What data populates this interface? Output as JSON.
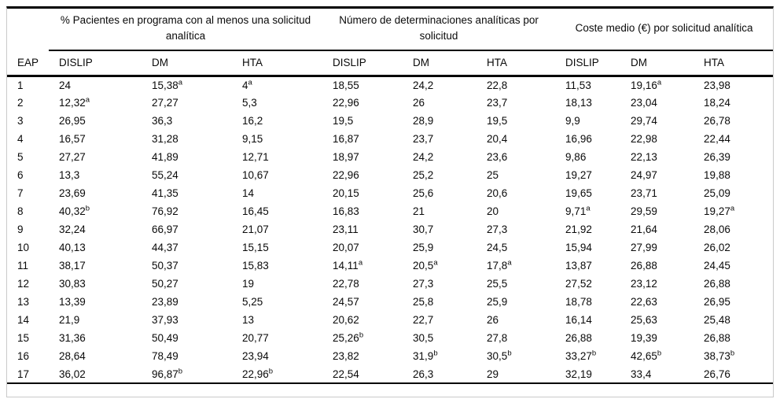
{
  "table": {
    "row_header_label": "EAP",
    "groups": [
      {
        "title": "% Pacientes en programa con al menos una solicitud analítica"
      },
      {
        "title": "Número de determinaciones analíticas por solicitud"
      },
      {
        "title": "Coste medio (€) por solicitud analítica"
      }
    ],
    "sub_headers": [
      "DISLIP",
      "DM",
      "HTA",
      "DISLIP",
      "DM",
      "HTA",
      "DISLIP",
      "DM",
      "HTA"
    ],
    "superscript_notes": [
      "a",
      "b"
    ],
    "rows": [
      {
        "eap": "1",
        "cells": [
          "24",
          "15,38^a",
          "4^a",
          "18,55",
          "24,2",
          "22,8",
          "11,53",
          "19,16^a",
          "23,98"
        ]
      },
      {
        "eap": "2",
        "cells": [
          "12,32^a",
          "27,27",
          "5,3",
          "22,96",
          "26",
          "23,7",
          "18,13",
          "23,04",
          "18,24"
        ]
      },
      {
        "eap": "3",
        "cells": [
          "26,95",
          "36,3",
          "16,2",
          "19,5",
          "28,9",
          "19,5",
          "9,9",
          "29,74",
          "26,78"
        ]
      },
      {
        "eap": "4",
        "cells": [
          "16,57",
          "31,28",
          "9,15",
          "16,87",
          "23,7",
          "20,4",
          "16,96",
          "22,98",
          "22,44"
        ]
      },
      {
        "eap": "5",
        "cells": [
          "27,27",
          "41,89",
          "12,71",
          "18,97",
          "24,2",
          "23,6",
          "9,86",
          "22,13",
          "26,39"
        ]
      },
      {
        "eap": "6",
        "cells": [
          "13,3",
          "55,24",
          "10,67",
          "22,96",
          "25,2",
          "25",
          "19,27",
          "24,97",
          "19,88"
        ]
      },
      {
        "eap": "7",
        "cells": [
          "23,69",
          "41,35",
          "14",
          "20,15",
          "25,6",
          "20,6",
          "19,65",
          "23,71",
          "25,09"
        ]
      },
      {
        "eap": "8",
        "cells": [
          "40,32^b",
          "76,92",
          "16,45",
          "16,83",
          "21",
          "20",
          "9,71^a",
          "29,59",
          "19,27^a"
        ]
      },
      {
        "eap": "9",
        "cells": [
          "32,24",
          "66,97",
          "21,07",
          "23,11",
          "30,7",
          "27,3",
          "21,92",
          "21,64",
          "28,06"
        ]
      },
      {
        "eap": "10",
        "cells": [
          "40,13",
          "44,37",
          "15,15",
          "20,07",
          "25,9",
          "24,5",
          "15,94",
          "27,99",
          "26,02"
        ]
      },
      {
        "eap": "11",
        "cells": [
          "38,17",
          "50,37",
          "15,83",
          "14,11^a",
          "20,5^a",
          "17,8^a",
          "13,87",
          "26,88",
          "24,45"
        ]
      },
      {
        "eap": "12",
        "cells": [
          "30,83",
          "50,27",
          "19",
          "22,78",
          "27,3",
          "25,5",
          "27,52",
          "23,12",
          "26,88"
        ]
      },
      {
        "eap": "13",
        "cells": [
          "13,39",
          "23,89",
          "5,25",
          "24,57",
          "25,8",
          "25,9",
          "18,78",
          "22,63",
          "26,95"
        ]
      },
      {
        "eap": "14",
        "cells": [
          "21,9",
          "37,93",
          "13",
          "20,62",
          "22,7",
          "26",
          "16,14",
          "25,63",
          "25,48"
        ]
      },
      {
        "eap": "15",
        "cells": [
          "31,36",
          "50,49",
          "20,77",
          "25,26^b",
          "30,5",
          "27,8",
          "26,88",
          "19,39",
          "26,88"
        ]
      },
      {
        "eap": "16",
        "cells": [
          "28,64",
          "78,49",
          "23,94",
          "23,82",
          "31,9^b",
          "30,5^b",
          "33,27^b",
          "42,65^b",
          "38,73^b"
        ]
      },
      {
        "eap": "17",
        "cells": [
          "36,02",
          "96,87^b",
          "22,96^b",
          "22,54",
          "26,3",
          "29",
          "32,19",
          "33,4",
          "26,76"
        ]
      }
    ]
  }
}
